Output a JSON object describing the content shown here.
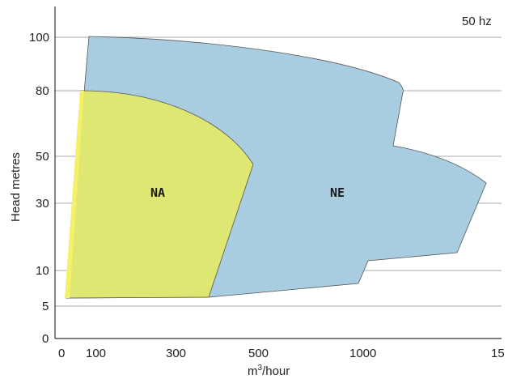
{
  "chart_data": {
    "type": "area",
    "frequency_label": "50 hz",
    "xlabel": "m",
    "xlabel_sup": "3",
    "xlabel_suffix": "/hour",
    "ylabel": "Head metres",
    "x_tick_labels": [
      "0",
      "100",
      "300",
      "500",
      "1000",
      "15"
    ],
    "y_tick_labels": [
      "100",
      "80",
      "50",
      "30",
      "10",
      "5",
      "0"
    ],
    "grid": true,
    "colors": {
      "NE": "#a9cde0",
      "NA": "#e3e86a",
      "NA_edge": "#f4f05a",
      "outline": "#555555"
    },
    "series": [
      {
        "name": "NE",
        "points": [
          [
            80,
            100
          ],
          [
            1150,
            80
          ],
          [
            1130,
            54
          ],
          [
            1480,
            38
          ],
          [
            1375,
            12
          ],
          [
            1005,
            11
          ],
          [
            980,
            8
          ],
          [
            370,
            6
          ],
          [
            15,
            6
          ]
        ]
      },
      {
        "name": "NA",
        "points": [
          [
            58,
            80
          ],
          [
            470,
            47
          ],
          [
            380,
            6
          ],
          [
            15,
            6
          ]
        ]
      }
    ]
  }
}
